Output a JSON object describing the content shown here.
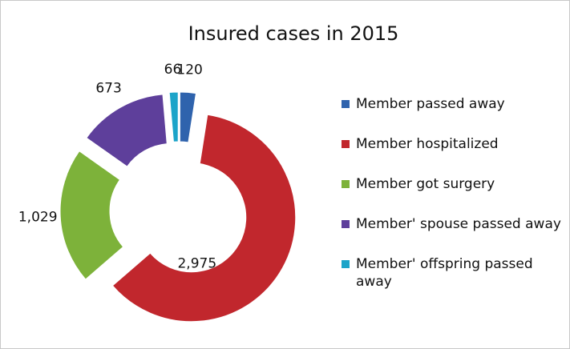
{
  "chart_data": {
    "type": "donut",
    "title": "Insured cases in 2015",
    "categories": [
      "Member passed away",
      "Member hospitalized",
      "Member got surgery",
      "Member' spouse passed away",
      "Member' offspring passed away"
    ],
    "values": [
      120,
      2975,
      1029,
      673,
      66
    ],
    "value_labels": [
      "120",
      "2,975",
      "1,029",
      "673",
      "66"
    ],
    "colors": [
      "#2f63ad",
      "#c1272d",
      "#7db23a",
      "#5e3f9b",
      "#1ca4c9"
    ],
    "legend": "right"
  }
}
